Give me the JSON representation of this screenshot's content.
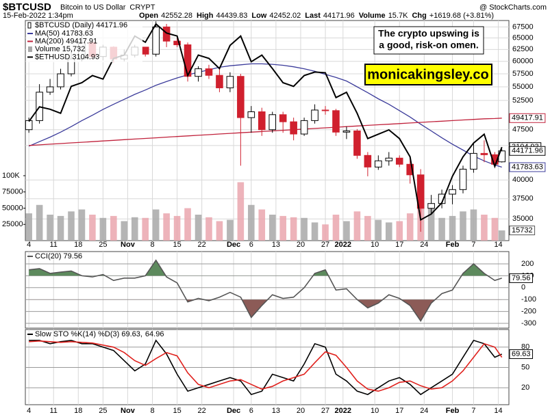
{
  "header": {
    "symbol": "$BTCUSD",
    "name": "Bitcoin to US Dollar",
    "exchange": "CRYPT",
    "source": "@ StockCharts.com",
    "date": "15-Feb-2022 1:34pm",
    "quote": [
      {
        "label": "Open",
        "value": "42552.28"
      },
      {
        "label": "High",
        "value": "44439.83"
      },
      {
        "label": "Low",
        "value": "42452.02"
      },
      {
        "label": "Last",
        "value": "44171.96"
      },
      {
        "label": "Volume",
        "value": "15.7K"
      },
      {
        "label": "Chg",
        "value": "+1619.68 (+3.81%)"
      }
    ]
  },
  "annotation": {
    "note": [
      "The crypto upswing is",
      "a good, risk-on omen."
    ],
    "site": "monicakingsley.co"
  },
  "chart_data": [
    {
      "type": "candlestick",
      "legend": "$BTCUSD (Daily) 44171.96",
      "flag": "44171.96",
      "log": true,
      "up_color": "#000000",
      "down_color": "#d0202e",
      "x": [
        0,
        3,
        6,
        9,
        12,
        15,
        18,
        21,
        24,
        27,
        30,
        33,
        36,
        39,
        42,
        45,
        48,
        51,
        54,
        57,
        60,
        63,
        66,
        69,
        72,
        75,
        78,
        81,
        84,
        87,
        90,
        93,
        96,
        99,
        102,
        105,
        108,
        111,
        114,
        117,
        120,
        123,
        126,
        129,
        132,
        134
      ],
      "xlim": [
        -1,
        136
      ],
      "xticks": [
        {
          "value": 0,
          "label": "4"
        },
        {
          "value": 7,
          "label": "11"
        },
        {
          "value": 14,
          "label": "18"
        },
        {
          "value": 21,
          "label": "25"
        },
        {
          "value": 28,
          "label": "Nov"
        },
        {
          "value": 35,
          "label": "8"
        },
        {
          "value": 42,
          "label": "15"
        },
        {
          "value": 49,
          "label": "22"
        },
        {
          "value": 58,
          "label": "Dec"
        },
        {
          "value": 63,
          "label": "6"
        },
        {
          "value": 70,
          "label": "13"
        },
        {
          "value": 77,
          "label": "20"
        },
        {
          "value": 84,
          "label": "27"
        },
        {
          "value": 89,
          "label": "2022"
        },
        {
          "value": 98,
          "label": "10"
        },
        {
          "value": 105,
          "label": "17"
        },
        {
          "value": 112,
          "label": "24"
        },
        {
          "value": 120,
          "label": "Feb"
        },
        {
          "value": 126,
          "label": "7"
        },
        {
          "value": 133,
          "label": "14"
        }
      ],
      "ylim": [
        32500,
        69000
      ],
      "yticks": [
        35000,
        37500,
        40000,
        45000,
        47500,
        52500,
        55000,
        57500,
        60000,
        62500,
        65000,
        67500
      ],
      "open": [
        47500,
        49000,
        54000,
        55000,
        57500,
        60500,
        64000,
        61000,
        63000,
        60500,
        61300,
        63000,
        61500,
        67500,
        64300,
        63500,
        57000,
        58500,
        57200,
        54800,
        57000,
        49500,
        50500,
        47500,
        50000,
        48800,
        46800,
        49000,
        50800,
        50700,
        47100,
        47300,
        43500,
        41800,
        42700,
        43100,
        42200,
        40700,
        36300,
        36900,
        38100,
        38700,
        41500,
        43800,
        43600,
        42552.28
      ],
      "high": [
        49500,
        55500,
        56500,
        58500,
        62500,
        66500,
        64200,
        63500,
        63200,
        62500,
        63500,
        63000,
        68800,
        68200,
        65500,
        64000,
        59000,
        59300,
        58500,
        57800,
        57500,
        51500,
        51200,
        50500,
        50500,
        49500,
        49500,
        51800,
        51500,
        51000,
        48000,
        47600,
        44000,
        43500,
        44000,
        43500,
        43200,
        41500,
        38000,
        38700,
        39300,
        42000,
        45500,
        45800,
        44000,
        44439.83
      ],
      "low": [
        47000,
        48500,
        53500,
        54500,
        57000,
        60000,
        60500,
        60200,
        59800,
        60000,
        60800,
        61000,
        61000,
        63000,
        63000,
        56000,
        56000,
        56500,
        54000,
        54000,
        42000,
        47000,
        46500,
        47000,
        47000,
        45800,
        46500,
        48500,
        50000,
        46500,
        46000,
        43000,
        40500,
        41400,
        42000,
        41800,
        39500,
        33500,
        35500,
        36300,
        36800,
        38200,
        41000,
        42500,
        41800,
        42452.02
      ],
      "close": [
        49000,
        54000,
        55000,
        57500,
        60500,
        64000,
        61000,
        63000,
        60500,
        61300,
        63000,
        61500,
        67500,
        64300,
        63500,
        57000,
        58500,
        57200,
        54800,
        57000,
        49500,
        50500,
        47500,
        50000,
        48800,
        46800,
        49000,
        50800,
        50700,
        47100,
        47300,
        43500,
        41800,
        42700,
        43100,
        42200,
        40700,
        36300,
        36900,
        38100,
        38700,
        41500,
        43800,
        43600,
        42200,
        44171.96
      ],
      "y2lim": [
        2230,
        4860
      ],
      "vlim": [
        0,
        339000
      ],
      "vticks": [
        25000,
        50000,
        75000,
        {
          "value": 100000,
          "label": "100K"
        }
      ],
      "series": [
        {
          "name": "MA(50) 41783.63",
          "flag": "41783.63",
          "type": "line",
          "color": "#3a3a9a",
          "values": [
            44900,
            45600,
            46300,
            47100,
            48000,
            49000,
            49900,
            50900,
            51800,
            52700,
            53600,
            54400,
            55300,
            56000,
            56700,
            57300,
            57800,
            58300,
            58800,
            59100,
            59300,
            59500,
            59500,
            59400,
            59200,
            58900,
            58500,
            58000,
            57400,
            56800,
            56100,
            55000,
            53900,
            52800,
            51800,
            50700,
            49600,
            48400,
            47300,
            46200,
            45200,
            44300,
            43400,
            42700,
            42100,
            41783.63
          ]
        },
        {
          "name": "MA(200) 49417.91",
          "flag": "49417.91",
          "type": "line",
          "color": "#c0203a",
          "values": [
            45000,
            45100,
            45200,
            45300,
            45400,
            45500,
            45600,
            45700,
            45800,
            45900,
            46000,
            46100,
            46200,
            46300,
            46400,
            46500,
            46600,
            46700,
            46800,
            46900,
            47000,
            47100,
            47200,
            47300,
            47400,
            47500,
            47600,
            47700,
            47800,
            47900,
            48000,
            48100,
            48200,
            48300,
            48400,
            48500,
            48600,
            48700,
            48800,
            48900,
            49000,
            49100,
            49200,
            49300,
            49350,
            49417.91
          ]
        },
        {
          "name": "Volume 15,732",
          "flag": "15732",
          "type": "bar",
          "axis": "volume",
          "color": "#a8a8a8",
          "down_color": "#eaa6ae",
          "values": [
            42000,
            55000,
            40000,
            38000,
            45000,
            48000,
            40000,
            35000,
            38000,
            30000,
            36000,
            35000,
            48000,
            42000,
            38000,
            50000,
            40000,
            36000,
            30000,
            32000,
            90000,
            55000,
            48000,
            40000,
            38000,
            36000,
            35000,
            28000,
            25000,
            40000,
            30000,
            45000,
            38000,
            32000,
            28000,
            30000,
            42000,
            75000,
            50000,
            35000,
            38000,
            45000,
            48000,
            40000,
            35000,
            15732
          ]
        },
        {
          "name": "$ETHUSD 3104.93",
          "flag": "3104.93",
          "type": "line",
          "axis": "y2",
          "color": "#000000",
          "values": [
            3400,
            3580,
            3550,
            3500,
            3850,
            3900,
            4000,
            3950,
            4250,
            4300,
            4600,
            4500,
            4800,
            4650,
            4600,
            4000,
            4300,
            4250,
            4100,
            4450,
            4600,
            4200,
            4300,
            4100,
            3900,
            3850,
            4000,
            4050,
            4040,
            3700,
            3770,
            3500,
            3200,
            3250,
            3300,
            3200,
            3000,
            2400,
            2450,
            2550,
            2800,
            3000,
            3150,
            3250,
            2900,
            3104.93
          ]
        }
      ]
    },
    {
      "type": "line",
      "fill_levels": [
        100,
        -100
      ],
      "fill_above": "#5d8a5d",
      "fill_below": "#8c5b57",
      "ylim": [
        -340,
        303
      ],
      "yticks": [
        200,
        100,
        0,
        -100,
        -200,
        -300
      ],
      "series": [
        {
          "name": "CCI(20) 79.56",
          "flag": "79.56",
          "color": "#555555",
          "values": [
            150,
            160,
            120,
            130,
            140,
            100,
            90,
            110,
            60,
            80,
            80,
            100,
            230,
            90,
            40,
            -120,
            -90,
            -110,
            -80,
            -40,
            -80,
            -250,
            -150,
            -60,
            -90,
            -80,
            0,
            120,
            150,
            -20,
            -10,
            -100,
            -170,
            -130,
            -60,
            -90,
            -150,
            -280,
            -130,
            -50,
            -20,
            120,
            200,
            120,
            60,
            79.56
          ]
        }
      ]
    },
    {
      "type": "line",
      "ylim": [
        -5,
        106
      ],
      "yticks": [
        80,
        50,
        20
      ],
      "series": [
        {
          "name": "Slow STO %K(14) %D(3) 69.63,",
          "flag": "69.63",
          "color": "#000000",
          "values": [
            90,
            90,
            85,
            88,
            90,
            85,
            85,
            80,
            75,
            60,
            45,
            55,
            90,
            70,
            40,
            15,
            20,
            25,
            30,
            35,
            30,
            10,
            15,
            40,
            35,
            30,
            55,
            85,
            80,
            40,
            30,
            15,
            10,
            20,
            30,
            35,
            25,
            10,
            20,
            30,
            40,
            65,
            90,
            85,
            65,
            69.63
          ]
        },
        {
          "name": "64.96",
          "color": "#e0201c",
          "values": [
            88,
            89,
            88,
            87,
            88,
            87,
            86,
            83,
            80,
            72,
            60,
            53,
            63,
            72,
            67,
            42,
            25,
            20,
            25,
            30,
            32,
            25,
            18,
            22,
            30,
            35,
            40,
            57,
            73,
            68,
            50,
            30,
            18,
            15,
            20,
            28,
            30,
            23,
            18,
            20,
            30,
            45,
            65,
            85,
            80,
            64.96
          ]
        }
      ]
    }
  ]
}
